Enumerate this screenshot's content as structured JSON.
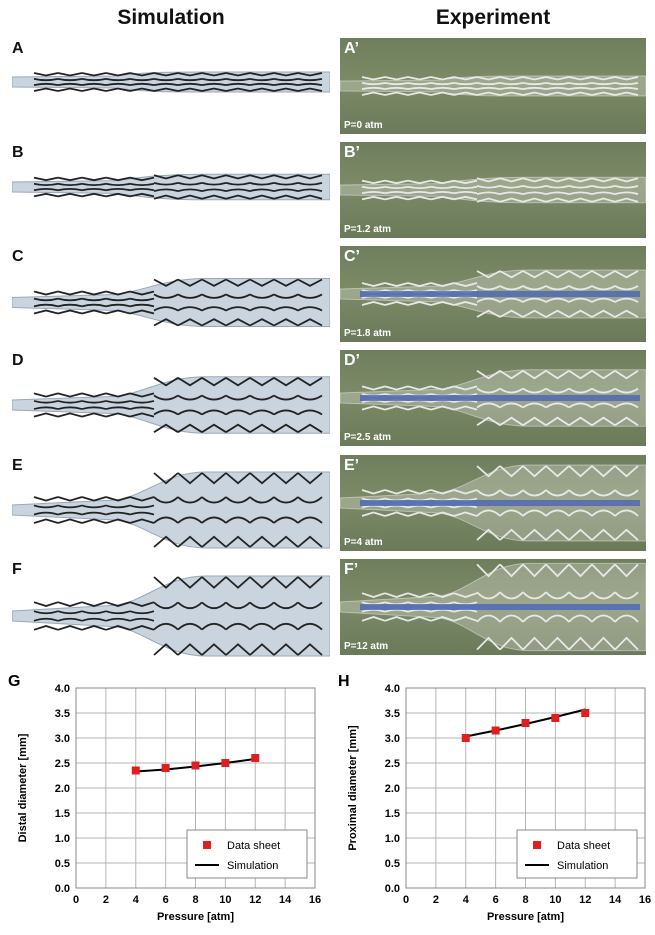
{
  "headers": {
    "simulation": "Simulation",
    "experiment": "Experiment"
  },
  "rows": [
    {
      "letter": "A",
      "exp_letter": "A’",
      "pressure": "P=0 atm"
    },
    {
      "letter": "B",
      "exp_letter": "B’",
      "pressure": "P=1.2 atm"
    },
    {
      "letter": "C",
      "exp_letter": "C’",
      "pressure": "P=1.8 atm"
    },
    {
      "letter": "D",
      "exp_letter": "D’",
      "pressure": "P=2.5 atm"
    },
    {
      "letter": "E",
      "exp_letter": "E’",
      "pressure": "P=4 atm"
    },
    {
      "letter": "F",
      "exp_letter": "F’",
      "pressure": "P=12 atm"
    }
  ],
  "chart_data": [
    {
      "panel": "G",
      "type": "scatter",
      "xlabel": "Pressure [atm]",
      "ylabel": "Distal diameter [mm]",
      "xlim": [
        0,
        16
      ],
      "ylim": [
        0,
        4
      ],
      "xticks": [
        "0",
        "2",
        "4",
        "6",
        "8",
        "10",
        "12",
        "14",
        "16"
      ],
      "yticks": [
        "0.0",
        "0.5",
        "1.0",
        "1.5",
        "2.0",
        "2.5",
        "3.0",
        "3.5",
        "4.0"
      ],
      "grid": true,
      "legend_position": "bottom-right",
      "series": [
        {
          "name": "Data sheet",
          "kind": "markers",
          "color": "#e02020",
          "x": [
            4,
            6,
            8,
            10,
            12
          ],
          "y": [
            2.35,
            2.4,
            2.45,
            2.5,
            2.6
          ]
        },
        {
          "name": "Simulation",
          "kind": "line",
          "color": "#000000",
          "x": [
            4,
            6,
            8,
            10,
            12
          ],
          "y": [
            2.33,
            2.37,
            2.43,
            2.5,
            2.58
          ]
        }
      ]
    },
    {
      "panel": "H",
      "type": "scatter",
      "xlabel": "Pressure [atm]",
      "ylabel": "Proximal diameter [mm]",
      "xlim": [
        0,
        16
      ],
      "ylim": [
        0,
        4
      ],
      "xticks": [
        "0",
        "2",
        "4",
        "6",
        "8",
        "10",
        "12",
        "14",
        "16"
      ],
      "yticks": [
        "0.0",
        "0.5",
        "1.0",
        "1.5",
        "2.0",
        "2.5",
        "3.0",
        "3.5",
        "4.0"
      ],
      "grid": true,
      "legend_position": "bottom-right",
      "series": [
        {
          "name": "Data sheet",
          "kind": "markers",
          "color": "#e02020",
          "x": [
            4,
            6,
            8,
            10,
            12
          ],
          "y": [
            3.0,
            3.15,
            3.3,
            3.4,
            3.5
          ]
        },
        {
          "name": "Simulation",
          "kind": "line",
          "color": "#000000",
          "x": [
            4,
            6,
            8,
            10,
            12
          ],
          "y": [
            3.03,
            3.15,
            3.28,
            3.42,
            3.57
          ]
        }
      ]
    }
  ]
}
